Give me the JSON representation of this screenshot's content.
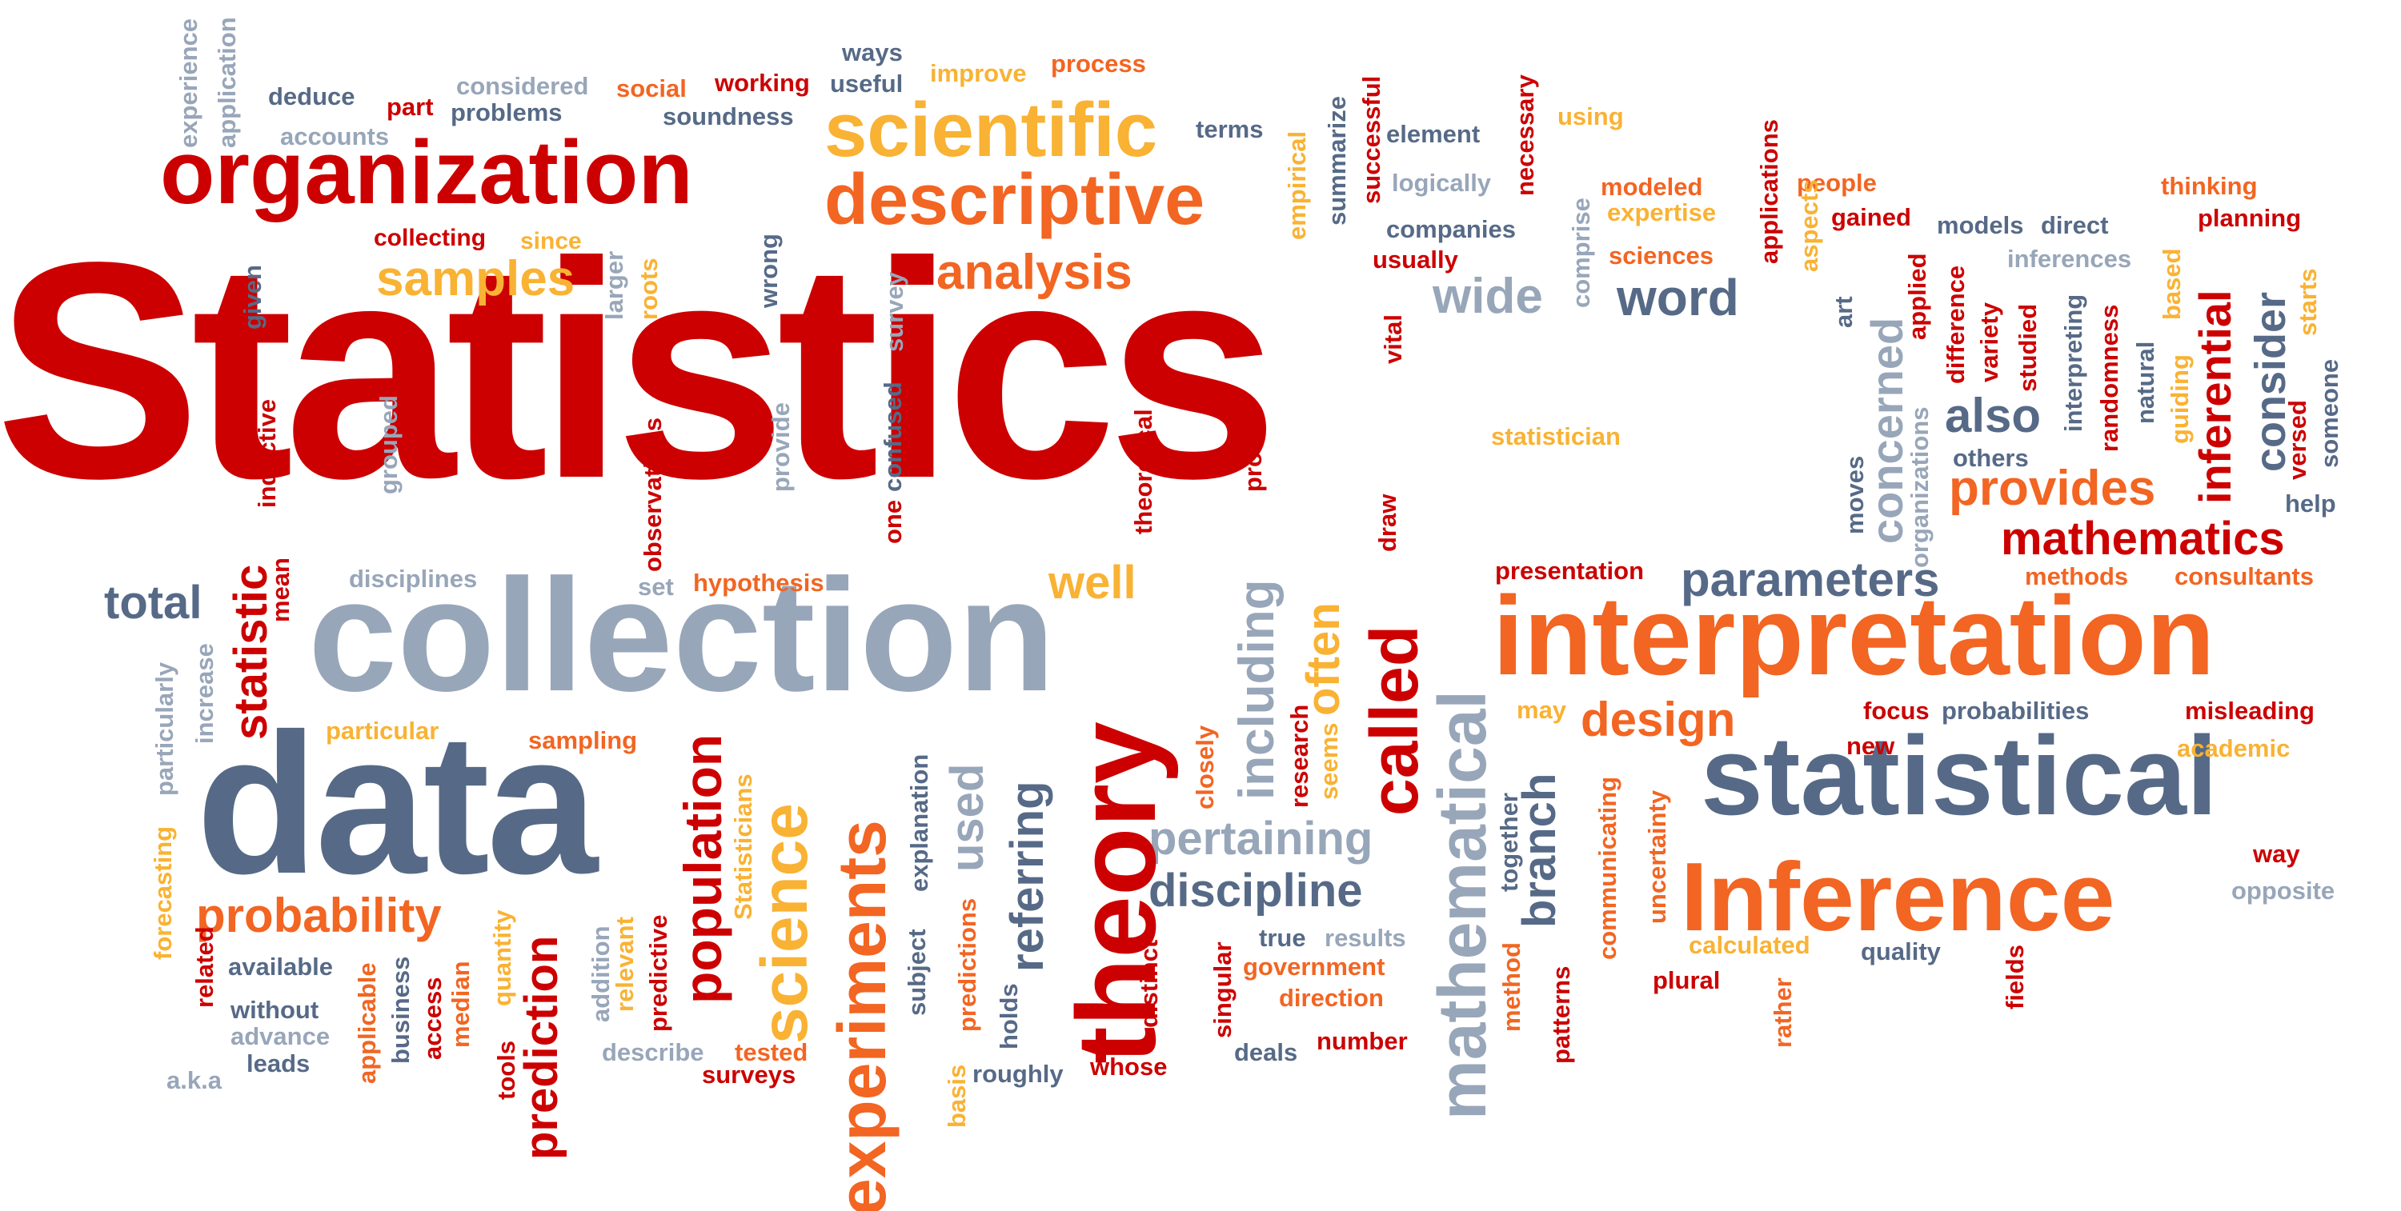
{
  "palette": {
    "red": "#cc0000",
    "orange": "#f26522",
    "yellow": "#f9b233",
    "slate": "#566a87",
    "gray": "#98a6b9",
    "background": "#ffffff"
  },
  "words": {
    "statistics": "Statistics",
    "collection": "collection",
    "data": "data",
    "interpretation": "interpretation",
    "statistical": "statistical",
    "inference": "Inference",
    "organization": "organization",
    "descriptive": "descriptive",
    "scientific": "scientific",
    "analysis": "analysis",
    "samples": "samples",
    "mathematics": "mathematics",
    "parameters": "parameters",
    "provides": "provides",
    "word": "word",
    "wide": "wide",
    "also": "also",
    "design": "design",
    "well": "well",
    "probability": "probability",
    "discipline": "discipline",
    "pertaining": "pertaining",
    "total": "total",
    "theory": "theory",
    "experiments": "experiments",
    "science": "science",
    "population": "population",
    "prediction": "prediction",
    "called": "called",
    "mathematical": "mathematical",
    "including": "including",
    "often": "often",
    "branch": "branch",
    "used": "used",
    "referring": "referring",
    "statistic": "statistic",
    "inferential": "inferential",
    "consider": "consider",
    "concerned": "concerned",
    "experience": "experience",
    "application": "application",
    "deduce": "deduce",
    "accounts": "accounts",
    "part": "part",
    "considered": "considered",
    "problems": "problems",
    "social": "social",
    "working": "working",
    "soundness": "soundness",
    "ways": "ways",
    "useful": "useful",
    "improve": "improve",
    "process": "process",
    "terms": "terms",
    "summarize": "summarize",
    "successful": "successful",
    "empirical": "empirical",
    "element": "element",
    "necessary": "necessary",
    "using": "using",
    "logically": "logically",
    "companies": "companies",
    "usually": "usually",
    "collecting": "collecting",
    "since": "since",
    "given": "given",
    "larger": "larger",
    "roots": "roots",
    "wrong": "wrong",
    "survey": "survey",
    "modeled": "modeled",
    "expertise": "expertise",
    "sciences": "sciences",
    "comprise": "comprise",
    "applications": "applications",
    "aspects": "aspects",
    "people": "people",
    "gained": "gained",
    "art": "art",
    "models": "models",
    "direct": "direct",
    "inferences": "inferences",
    "thinking": "thinking",
    "planning": "planning",
    "based": "based",
    "starts": "starts",
    "applied": "applied",
    "difference": "difference",
    "variety": "variety",
    "studied": "studied",
    "interpreting": "interpreting",
    "randomness": "randomness",
    "natural": "natural",
    "guiding": "guiding",
    "versed": "versed",
    "someone": "someone",
    "others": "others",
    "help": "help",
    "moves": "moves",
    "organizations": "organizations",
    "vital": "vital",
    "draw": "draw",
    "statistician": "statistician",
    "presentation": "presentation",
    "methods": "methods",
    "consultants": "consultants",
    "inductive": "inductive",
    "grouped": "grouped",
    "observations": "observations",
    "provide": "provide",
    "one": "one",
    "confused": "confused",
    "theoretical": "theoretical",
    "prove": "prove",
    "mean": "mean",
    "disciplines": "disciplines",
    "set": "set",
    "hypothesis": "hypothesis",
    "particularly": "particularly",
    "increase": "increase",
    "particular": "particular",
    "sampling": "sampling",
    "forecasting": "forecasting",
    "related": "related",
    "available": "available",
    "without": "without",
    "advance": "advance",
    "leads": "leads",
    "aka": "a.k.a",
    "applicable": "applicable",
    "business": "business",
    "access": "access",
    "median": "median",
    "quantity": "quantity",
    "tools": "tools",
    "addition": "addition",
    "relevant": "relevant",
    "predictive": "predictive",
    "describe": "describe",
    "statisticians": "Statisticians",
    "tested": "tested",
    "surveys": "surveys",
    "explanation": "explanation",
    "subject": "subject",
    "predictions": "predictions",
    "basis": "basis",
    "holds": "holds",
    "roughly": "roughly",
    "distinct": "distinct",
    "whose": "whose",
    "closely": "closely",
    "research": "research",
    "seems": "seems",
    "singular": "singular",
    "true": "true",
    "results": "results",
    "government": "government",
    "direction": "direction",
    "deals": "deals",
    "number": "number",
    "may": "may",
    "together": "together",
    "method": "method",
    "patterns": "patterns",
    "communicating": "communicating",
    "uncertainty": "uncertainty",
    "calculated": "calculated",
    "plural": "plural",
    "rather": "rather",
    "quality": "quality",
    "fields": "fields",
    "focus": "focus",
    "probabilities": "probabilities",
    "misleading": "misleading",
    "new": "new",
    "academic": "academic",
    "way": "way",
    "opposite": "opposite"
  }
}
